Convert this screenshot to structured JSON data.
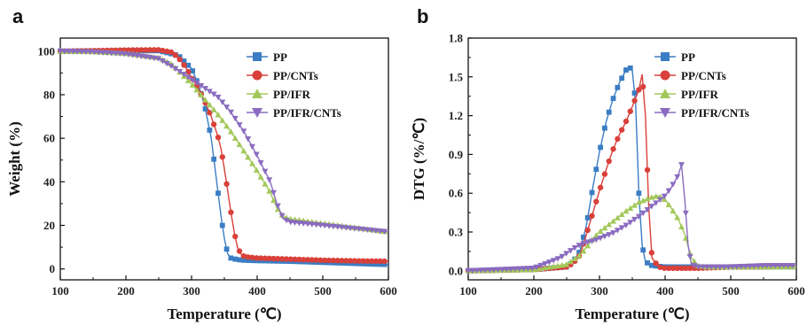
{
  "chart_data": [
    {
      "type": "line",
      "panel": "a",
      "xlabel": "Temperature (℃)",
      "ylabel": "Weight (%)",
      "xlim": [
        100,
        600
      ],
      "ylim": [
        -5,
        106
      ],
      "xticks": [
        100,
        200,
        300,
        400,
        500,
        600
      ],
      "yticks": [
        0,
        20,
        40,
        60,
        80,
        100
      ],
      "legend_position": "top-right",
      "series": [
        {
          "name": "PP",
          "color": "#3b7dc4",
          "marker": "square",
          "x": [
            100,
            150,
            200,
            250,
            280,
            300,
            310,
            320,
            330,
            335,
            340,
            345,
            350,
            355,
            360,
            365,
            370,
            380,
            400,
            450,
            500,
            550,
            600
          ],
          "y": [
            100,
            100,
            100.2,
            100.2,
            98,
            92,
            85,
            75,
            60,
            48,
            36,
            24,
            14,
            7,
            5,
            4.6,
            4.3,
            4,
            3.8,
            3.5,
            3,
            2.5,
            2
          ]
        },
        {
          "name": "PP/CNTs",
          "color": "#d9403a",
          "marker": "circle",
          "x": [
            100,
            150,
            200,
            250,
            270,
            280,
            290,
            300,
            310,
            320,
            330,
            340,
            345,
            350,
            355,
            360,
            365,
            370,
            375,
            380,
            385,
            400,
            450,
            500,
            550,
            600
          ],
          "y": [
            100,
            100.2,
            100.5,
            100.6,
            99.5,
            97,
            93,
            88,
            83,
            77,
            70,
            61,
            55,
            46,
            36,
            26,
            17,
            10,
            7,
            5.8,
            5.5,
            5,
            4.5,
            4,
            3.7,
            3.5
          ]
        },
        {
          "name": "PP/IFR",
          "color": "#a3c85a",
          "marker": "triangle-up",
          "x": [
            100,
            150,
            200,
            250,
            270,
            280,
            290,
            300,
            320,
            340,
            360,
            380,
            400,
            420,
            430,
            440,
            450,
            500,
            550,
            600
          ],
          "y": [
            100,
            99.8,
            99,
            97,
            94,
            91,
            88,
            85,
            78,
            71,
            63,
            54,
            45,
            35,
            28,
            24,
            23,
            21,
            19,
            17
          ]
        },
        {
          "name": "PP/IFR/CNTs",
          "color": "#8a6bc0",
          "marker": "triangle-down",
          "x": [
            100,
            150,
            200,
            250,
            270,
            280,
            290,
            300,
            320,
            340,
            360,
            380,
            400,
            420,
            430,
            440,
            450,
            500,
            550,
            600
          ],
          "y": [
            100,
            99.6,
            98.7,
            96.5,
            93,
            91,
            89,
            87,
            83,
            79,
            72,
            63,
            52,
            40,
            30,
            23,
            21.5,
            20,
            18.5,
            17
          ]
        }
      ]
    },
    {
      "type": "line",
      "panel": "b",
      "xlabel": "Temperature (℃)",
      "ylabel": "DTG (%/℃)",
      "xlim": [
        100,
        600
      ],
      "ylim": [
        -0.07,
        1.8
      ],
      "xticks": [
        100,
        200,
        300,
        400,
        500,
        600
      ],
      "yticks": [
        0.0,
        0.3,
        0.6,
        0.9,
        1.2,
        1.5,
        1.8
      ],
      "ytick_labels": [
        "0.0",
        "0.3",
        "0.6",
        "0.9",
        "1.2",
        "1.5",
        "1.8"
      ],
      "legend_position": "top-right",
      "series": [
        {
          "name": "PP",
          "color": "#3b7dc4",
          "marker": "square",
          "x": [
            100,
            200,
            250,
            260,
            270,
            280,
            290,
            300,
            310,
            320,
            330,
            340,
            345,
            350,
            355,
            360,
            365,
            370,
            380,
            400,
            450,
            500,
            550,
            600
          ],
          "y": [
            0,
            0.01,
            0.03,
            0.07,
            0.15,
            0.35,
            0.65,
            0.92,
            1.15,
            1.32,
            1.45,
            1.55,
            1.58,
            1.55,
            1.3,
            0.6,
            0.2,
            0.07,
            0.04,
            0.03,
            0.03,
            0.03,
            0.03,
            0.03
          ]
        },
        {
          "name": "PP/CNTs",
          "color": "#d9403a",
          "marker": "circle",
          "x": [
            100,
            200,
            250,
            260,
            270,
            280,
            290,
            300,
            310,
            320,
            330,
            340,
            350,
            360,
            365,
            370,
            375,
            380,
            390,
            400,
            450,
            500,
            550,
            600
          ],
          "y": [
            0,
            0.01,
            0.03,
            0.06,
            0.12,
            0.28,
            0.45,
            0.62,
            0.78,
            0.93,
            1.05,
            1.15,
            1.27,
            1.4,
            1.52,
            1.2,
            0.5,
            0.1,
            0.03,
            0.02,
            0.02,
            0.03,
            0.03,
            0.04
          ]
        },
        {
          "name": "PP/IFR",
          "color": "#a3c85a",
          "marker": "triangle-up",
          "x": [
            100,
            200,
            250,
            270,
            280,
            290,
            300,
            320,
            340,
            360,
            380,
            390,
            400,
            410,
            420,
            430,
            440,
            450,
            460,
            500,
            550,
            600
          ],
          "y": [
            0,
            0.01,
            0.05,
            0.12,
            0.18,
            0.25,
            0.3,
            0.38,
            0.46,
            0.53,
            0.57,
            0.58,
            0.55,
            0.48,
            0.4,
            0.28,
            0.1,
            0.04,
            0.03,
            0.03,
            0.03,
            0.03
          ]
        },
        {
          "name": "PP/IFR/CNTs",
          "color": "#8a6bc0",
          "marker": "triangle-down",
          "x": [
            100,
            200,
            240,
            260,
            270,
            280,
            290,
            300,
            320,
            340,
            360,
            380,
            400,
            410,
            420,
            425,
            430,
            435,
            440,
            450,
            500,
            550,
            600
          ],
          "y": [
            0,
            0.02,
            0.1,
            0.17,
            0.2,
            0.22,
            0.23,
            0.25,
            0.29,
            0.35,
            0.42,
            0.5,
            0.58,
            0.65,
            0.74,
            0.82,
            0.55,
            0.2,
            0.05,
            0.03,
            0.03,
            0.04,
            0.04
          ]
        }
      ]
    }
  ]
}
